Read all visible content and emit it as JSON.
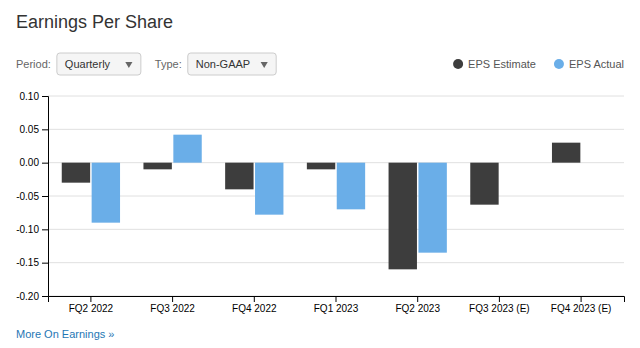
{
  "chart_data": {
    "type": "bar",
    "title": "Earnings Per Share",
    "annotations": [
      "Period:",
      "Quarterly",
      "Type:",
      "Non-GAAP",
      "More On Earnings »"
    ],
    "categories": [
      "FQ2 2022",
      "FQ3 2022",
      "FQ4 2022",
      "FQ1 2023",
      "FQ2 2023",
      "FQ3 2023 (E)",
      "FQ4 2023 (E)"
    ],
    "series": [
      {
        "name": "EPS Estimate",
        "color": "#3d3d3d",
        "values": [
          -0.03,
          -0.01,
          -0.04,
          -0.01,
          -0.16,
          -0.063,
          0.03
        ]
      },
      {
        "name": "EPS Actual",
        "color": "#6aaee8",
        "values": [
          -0.09,
          0.042,
          -0.078,
          -0.07,
          -0.135,
          null,
          null
        ]
      }
    ],
    "ylim": [
      -0.2,
      0.1
    ],
    "yticks": [
      {
        "value": -0.2,
        "label": "-0.20"
      },
      {
        "value": -0.15,
        "label": "-0.15"
      },
      {
        "value": -0.1,
        "label": "-0.10"
      },
      {
        "value": -0.05,
        "label": "-0.05"
      },
      {
        "value": 0.0,
        "label": "0.00"
      },
      {
        "value": 0.05,
        "label": "0.05"
      },
      {
        "value": 0.1,
        "label": "0.10"
      }
    ],
    "grid": true,
    "legend": "top-right"
  }
}
